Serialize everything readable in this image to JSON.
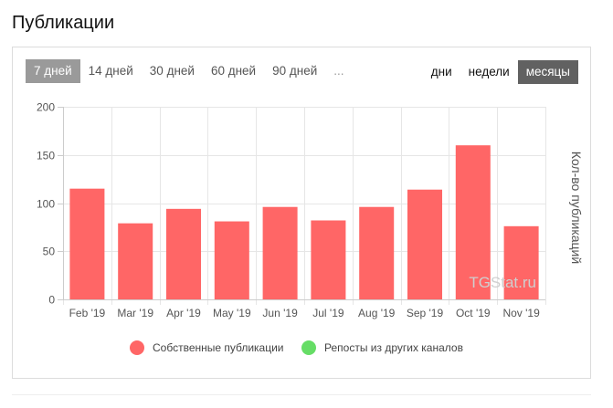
{
  "page": {
    "title": "Публикации"
  },
  "periods": [
    {
      "label": "7 дней",
      "active": true
    },
    {
      "label": "14 дней",
      "active": false
    },
    {
      "label": "30 дней",
      "active": false
    },
    {
      "label": "60 дней",
      "active": false
    },
    {
      "label": "90 дней",
      "active": false
    },
    {
      "label": "...",
      "active": false
    }
  ],
  "grouping": [
    {
      "label": "дни",
      "active": false
    },
    {
      "label": "недели",
      "active": false
    },
    {
      "label": "месяцы",
      "active": true
    }
  ],
  "watermark": "TGStat.ru",
  "colors": {
    "own": "#ff6666",
    "repost": "#66dd66"
  },
  "chart_data": {
    "type": "bar",
    "categories": [
      "Feb '19",
      "Mar '19",
      "Apr '19",
      "May '19",
      "Jun '19",
      "Jul '19",
      "Aug '19",
      "Sep '19",
      "Oct '19",
      "Nov '19"
    ],
    "series": [
      {
        "name": "Собственные публикации",
        "values": [
          115,
          79,
          94,
          81,
          96,
          82,
          96,
          114,
          160,
          76
        ]
      },
      {
        "name": "Репосты из других каналов",
        "values": [
          0,
          0,
          0,
          0,
          0,
          0,
          0,
          0,
          0,
          0
        ]
      }
    ],
    "title": "",
    "xlabel": "",
    "ylabel": "Кол-во публикаций",
    "ylim": [
      0,
      200
    ],
    "yticks": [
      0,
      50,
      100,
      150,
      200
    ],
    "grid": true,
    "legend": "bottom"
  }
}
